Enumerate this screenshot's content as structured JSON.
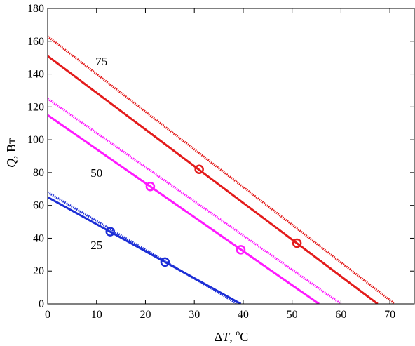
{
  "chart_data": {
    "type": "line",
    "xlabel": {
      "prefix": "Δ",
      "var": "T",
      "suffix": ", ",
      "sup": "o",
      "unit": "C"
    },
    "ylabel": {
      "var": "Q",
      "suffix": ", Вт"
    },
    "xlim": [
      0,
      75
    ],
    "ylim": [
      0,
      180
    ],
    "xticks": [
      0,
      10,
      20,
      30,
      40,
      50,
      60,
      70
    ],
    "yticks": [
      0,
      20,
      40,
      60,
      80,
      100,
      120,
      140,
      160,
      180
    ],
    "grid": false,
    "annotations": [
      {
        "text": "75",
        "x": 11,
        "y": 148
      },
      {
        "text": "50",
        "x": 10,
        "y": 80
      },
      {
        "text": "25",
        "x": 10,
        "y": 36
      }
    ],
    "series": [
      {
        "color": "#e31b1b",
        "style": "dotted",
        "x": [
          0,
          71
        ],
        "y": [
          163,
          0
        ]
      },
      {
        "color": "#e31b1b",
        "style": "solid",
        "x": [
          0,
          67.5
        ],
        "y": [
          151,
          0
        ]
      },
      {
        "color": "#ff19ff",
        "style": "dotted",
        "x": [
          0,
          60
        ],
        "y": [
          125,
          0
        ]
      },
      {
        "color": "#ff19ff",
        "style": "solid",
        "x": [
          0,
          55.5
        ],
        "y": [
          115,
          0
        ]
      },
      {
        "color": "#1c2ed6",
        "style": "dotted",
        "x": [
          0,
          38.8
        ],
        "y": [
          68,
          0
        ]
      },
      {
        "color": "#1c2ed6",
        "style": "solid",
        "x": [
          0,
          39.5
        ],
        "y": [
          65,
          0
        ]
      }
    ],
    "markers": [
      {
        "color": "#e31b1b",
        "x": 31,
        "y": 82
      },
      {
        "color": "#e31b1b",
        "x": 51,
        "y": 37
      },
      {
        "color": "#ff19ff",
        "x": 21,
        "y": 71.5
      },
      {
        "color": "#ff19ff",
        "x": 39.5,
        "y": 33
      },
      {
        "color": "#1c2ed6",
        "x": 12.8,
        "y": 44
      },
      {
        "color": "#1c2ed6",
        "x": 24,
        "y": 25.5
      }
    ]
  }
}
